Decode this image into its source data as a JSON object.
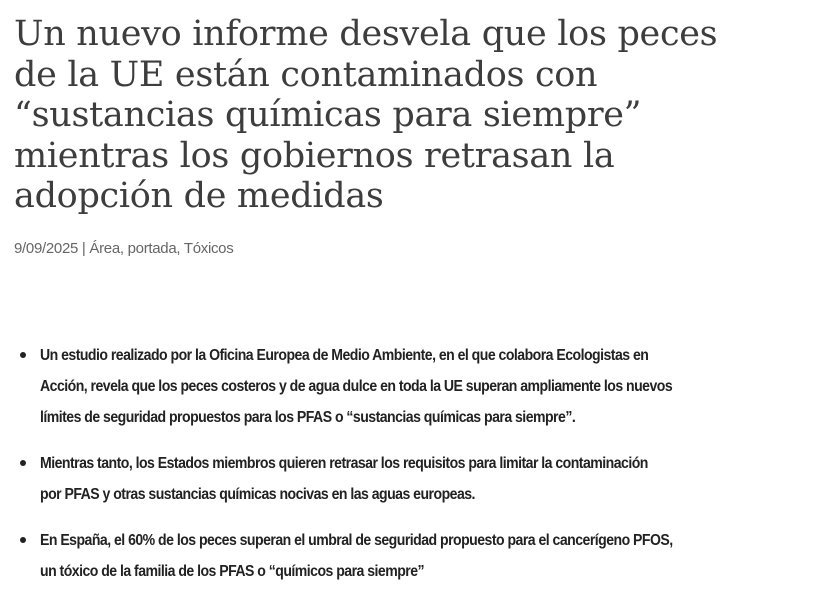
{
  "article": {
    "title_lines": [
      "Un nuevo informe desvela que los peces",
      "de la UE están contaminados con",
      "“sustancias químicas para siempre”",
      "mientras los gobiernos retrasan la",
      "adopción de medidas"
    ],
    "date": "9/09/2025",
    "separator": "|",
    "categories": "Área, portada, Tóxicos",
    "bullets": [
      {
        "lines": [
          "Un estudio realizado por la Oficina Europea de Medio Ambiente, en el que colabora Ecologistas en",
          "Acción, revela que los peces costeros y de agua dulce en toda la UE superan ampliamente los nuevos",
          "límites de seguridad propuestos para los PFAS o “sustancias químicas para siempre”."
        ]
      },
      {
        "lines": [
          "Mientras tanto, los Estados miembros quieren retrasar los requisitos para limitar la contaminación",
          "por PFAS y otras sustancias químicas nocivas en las aguas europeas."
        ]
      },
      {
        "lines": [
          "En España, el 60% de los peces superan el umbral de seguridad propuesto para el cancerígeno PFOS,",
          "un tóxico de la familia de los PFAS o “químicos para siempre”"
        ]
      }
    ]
  }
}
